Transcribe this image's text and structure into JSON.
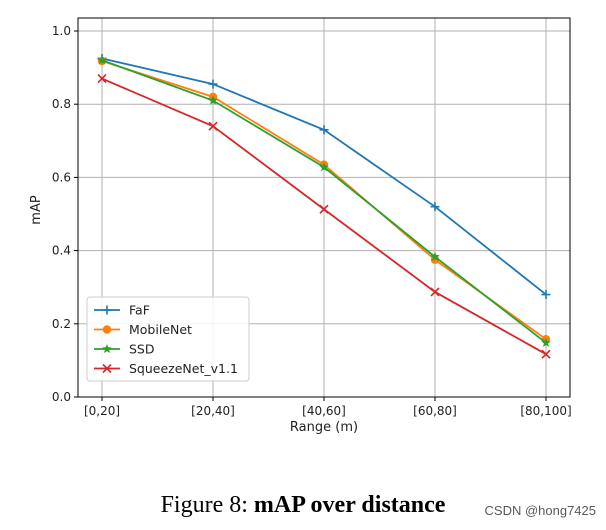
{
  "chart_data": {
    "type": "line",
    "title": "",
    "xlabel": "Range (m)",
    "ylabel": "mAP",
    "categories": [
      "[0,20]",
      "[20,40]",
      "[40,60]",
      "[60,80]",
      "[80,100]"
    ],
    "ylim": [
      0.0,
      1.0
    ],
    "yticks": [
      "0.0",
      "0.2",
      "0.4",
      "0.6",
      "0.8",
      "1.0"
    ],
    "grid": true,
    "legend_position": "lower-left",
    "series": [
      {
        "name": "FaF",
        "marker": "plus",
        "color": "#1f77b4",
        "values": [
          0.925,
          0.855,
          0.73,
          0.52,
          0.28
        ]
      },
      {
        "name": "MobileNet",
        "marker": "circle",
        "color": "#ff7f0e",
        "values": [
          0.918,
          0.82,
          0.635,
          0.375,
          0.158
        ]
      },
      {
        "name": "SSD",
        "marker": "star",
        "color": "#2ca02c",
        "values": [
          0.92,
          0.81,
          0.628,
          0.383,
          0.148
        ]
      },
      {
        "name": "SqueezeNet_v1.1",
        "marker": "x",
        "color": "#d62728",
        "values": [
          0.87,
          0.74,
          0.513,
          0.287,
          0.117
        ]
      }
    ]
  },
  "caption": {
    "prefix": "Figure 8: ",
    "bold": "mAP over distance"
  },
  "watermark": "CSDN @hong7425"
}
